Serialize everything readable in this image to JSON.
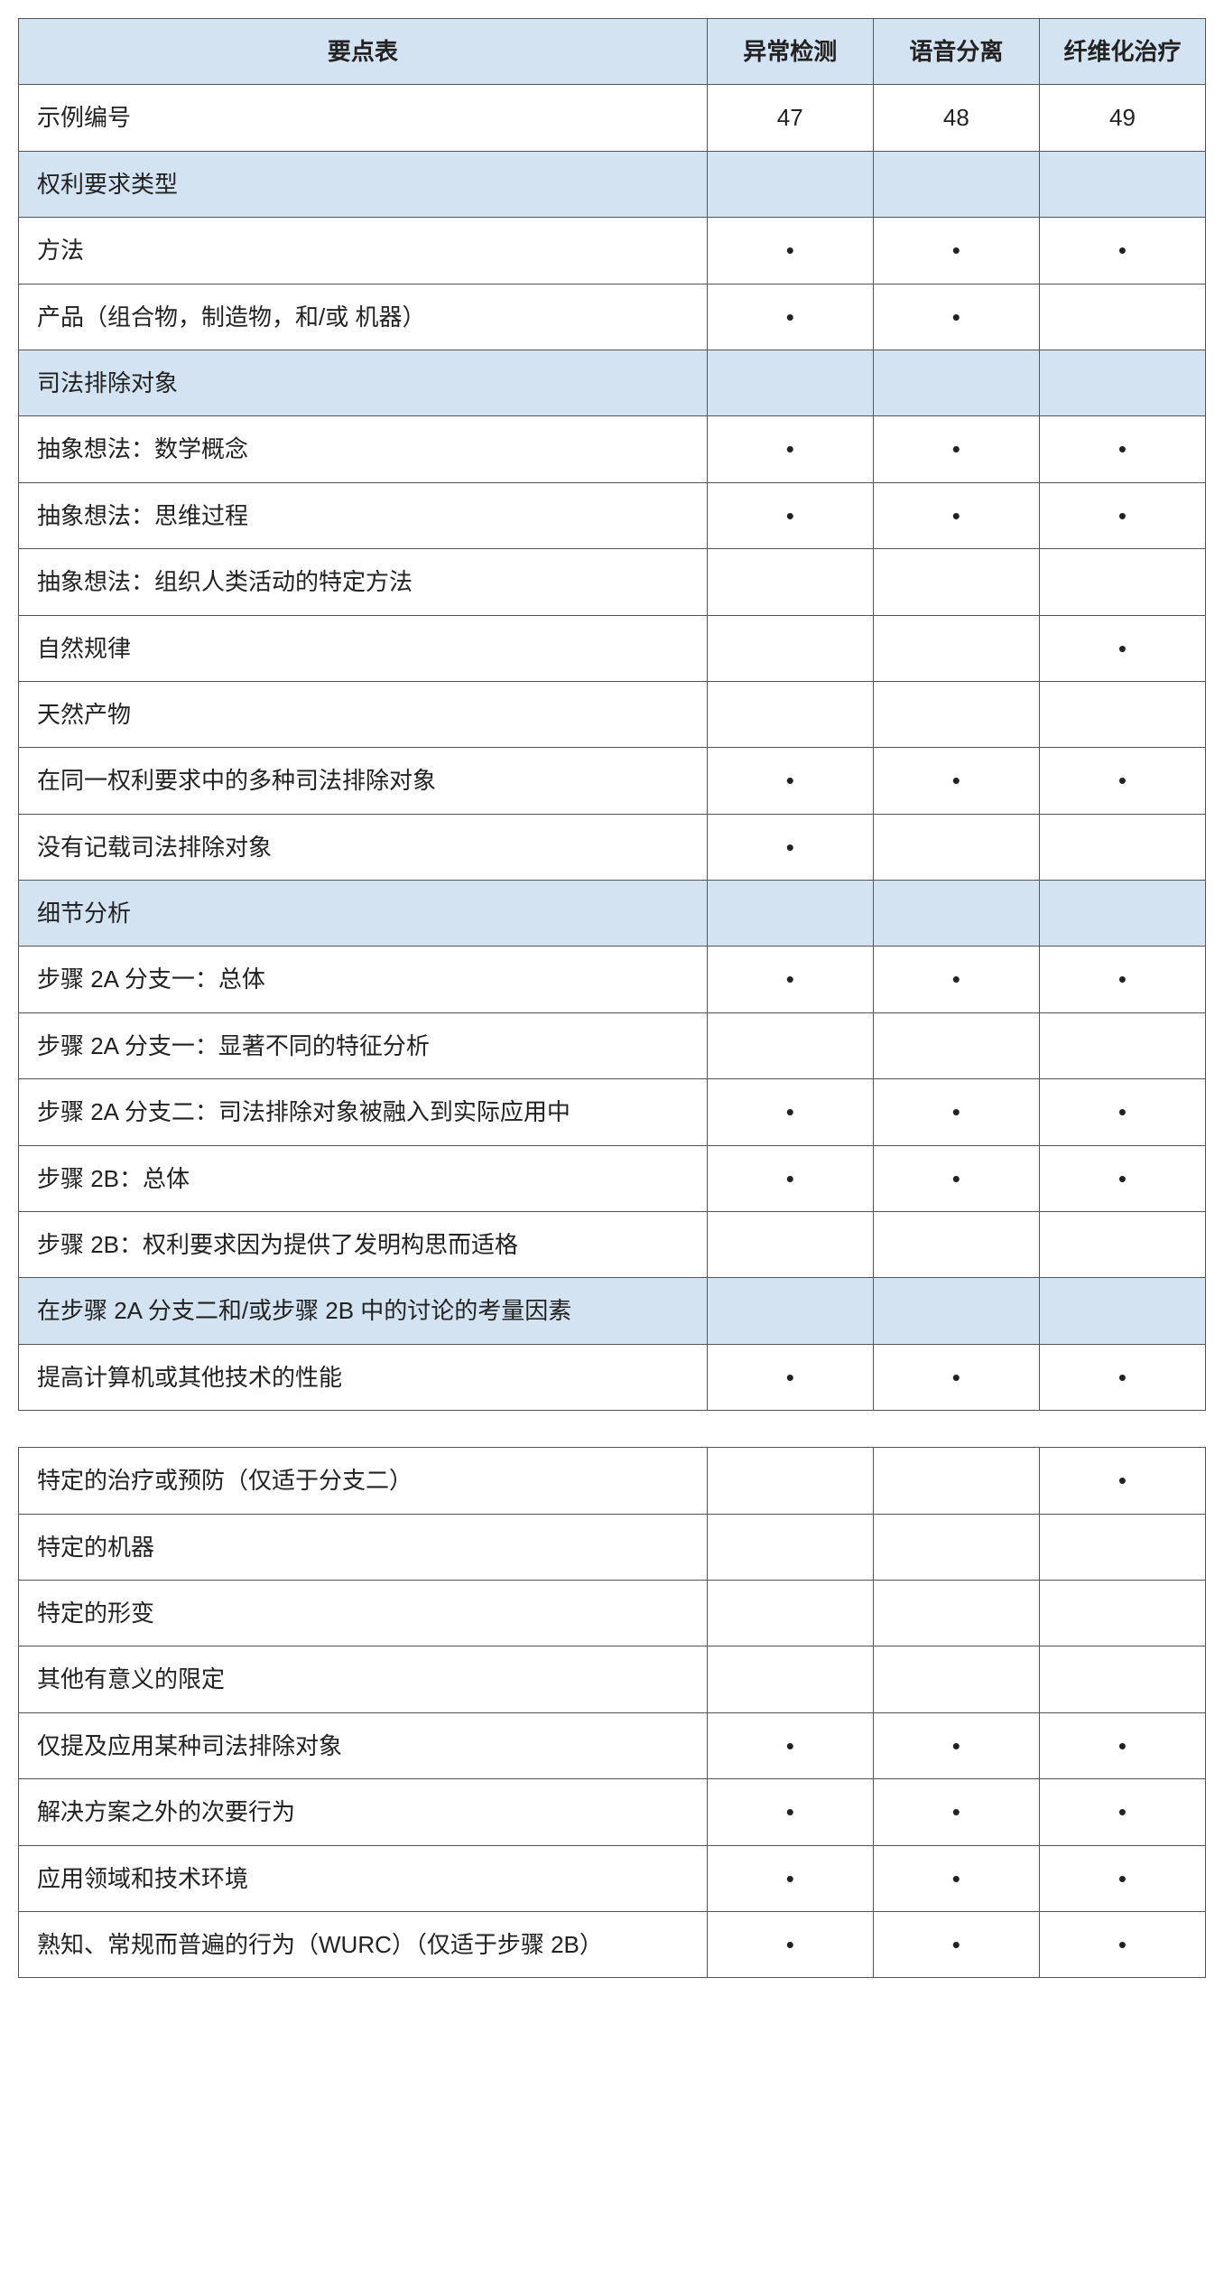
{
  "header": {
    "title": "要点表",
    "cols": [
      "异常检测",
      "语音分离",
      "纤维化治疗"
    ]
  },
  "colors": {
    "section_bg": "#d3e3f1",
    "border": "#555555",
    "text": "#222222",
    "background": "#ffffff"
  },
  "dot": "•",
  "table1": {
    "rows": [
      {
        "label": "示例编号",
        "vals": [
          "47",
          "48",
          "49"
        ],
        "section": false
      },
      {
        "label": "权利要求类型",
        "vals": [
          "",
          "",
          ""
        ],
        "section": true
      },
      {
        "label": "方法",
        "vals": [
          "•",
          "•",
          "•"
        ],
        "section": false
      },
      {
        "label": "产品（组合物，制造物，和/或  机器）",
        "vals": [
          "•",
          "•",
          ""
        ],
        "section": false
      },
      {
        "label": "司法排除对象",
        "vals": [
          "",
          "",
          ""
        ],
        "section": true
      },
      {
        "label": "抽象想法：数学概念",
        "vals": [
          "•",
          "•",
          "•"
        ],
        "section": false
      },
      {
        "label": "抽象想法：思维过程",
        "vals": [
          "•",
          "•",
          "•"
        ],
        "section": false
      },
      {
        "label": "抽象想法：组织人类活动的特定方法",
        "vals": [
          "",
          "",
          ""
        ],
        "section": false
      },
      {
        "label": "自然规律",
        "vals": [
          "",
          "",
          "•"
        ],
        "section": false
      },
      {
        "label": "天然产物",
        "vals": [
          "",
          "",
          ""
        ],
        "section": false
      },
      {
        "label": "在同一权利要求中的多种司法排除对象",
        "vals": [
          "•",
          "•",
          "•"
        ],
        "section": false
      },
      {
        "label": "没有记载司法排除对象",
        "vals": [
          "•",
          "",
          ""
        ],
        "section": false
      },
      {
        "label": "细节分析",
        "vals": [
          "",
          "",
          ""
        ],
        "section": true
      },
      {
        "label": "步骤 2A 分支一：总体",
        "vals": [
          "•",
          "•",
          "•"
        ],
        "section": false
      },
      {
        "label": "步骤 2A 分支一：显著不同的特征分析",
        "vals": [
          "",
          "",
          ""
        ],
        "section": false
      },
      {
        "label": "步骤 2A 分支二：司法排除对象被融入到实际应用中",
        "vals": [
          "•",
          "•",
          "•"
        ],
        "section": false
      },
      {
        "label": "步骤 2B：总体",
        "vals": [
          "•",
          "•",
          "•"
        ],
        "section": false
      },
      {
        "label": "步骤 2B：权利要求因为提供了发明构思而适格",
        "vals": [
          "",
          "",
          ""
        ],
        "section": false
      },
      {
        "label": "在步骤 2A 分支二和/或步骤 2B 中的讨论的考量因素",
        "vals": [
          "",
          "",
          ""
        ],
        "section": true
      },
      {
        "label": "提高计算机或其他技术的性能",
        "vals": [
          "•",
          "•",
          "•"
        ],
        "section": false
      }
    ]
  },
  "table2": {
    "rows": [
      {
        "label": "特定的治疗或预防（仅适于分支二）",
        "vals": [
          "",
          "",
          "•"
        ],
        "section": false
      },
      {
        "label": "特定的机器",
        "vals": [
          "",
          "",
          ""
        ],
        "section": false
      },
      {
        "label": "特定的形变",
        "vals": [
          "",
          "",
          ""
        ],
        "section": false
      },
      {
        "label": "其他有意义的限定",
        "vals": [
          "",
          "",
          ""
        ],
        "section": false
      },
      {
        "label": "仅提及应用某种司法排除对象",
        "vals": [
          "•",
          "•",
          "•"
        ],
        "section": false
      },
      {
        "label": "解决方案之外的次要行为",
        "vals": [
          "•",
          "•",
          "•"
        ],
        "section": false
      },
      {
        "label": "应用领域和技术环境",
        "vals": [
          "•",
          "•",
          "•"
        ],
        "section": false
      },
      {
        "label": "熟知、常规而普遍的行为（WURC）（仅适于步骤 2B）",
        "vals": [
          "•",
          "•",
          "•"
        ],
        "section": false
      }
    ]
  }
}
